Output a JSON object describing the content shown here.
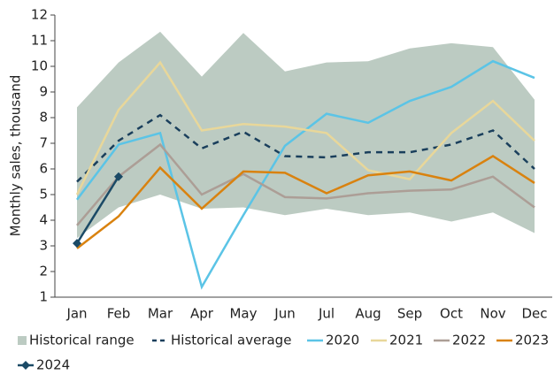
{
  "chart_data": {
    "type": "line",
    "ylabel": "Monthly sales, thousand",
    "categories": [
      "Jan",
      "Feb",
      "Mar",
      "Apr",
      "May",
      "Jun",
      "Jul",
      "Aug",
      "Sep",
      "Oct",
      "Nov",
      "Dec"
    ],
    "ylim": [
      1,
      12
    ],
    "yticks": [
      1,
      2,
      3,
      4,
      5,
      6,
      7,
      8,
      9,
      10,
      11,
      12
    ],
    "range": {
      "name": "Historical range",
      "color": "#bccbc2",
      "high": [
        8.4,
        10.15,
        11.35,
        9.6,
        11.3,
        9.8,
        10.15,
        10.2,
        10.7,
        10.9,
        10.75,
        8.7
      ],
      "low": [
        3.3,
        4.5,
        5.0,
        4.45,
        4.5,
        4.2,
        4.45,
        4.2,
        4.3,
        3.95,
        4.3,
        3.5
      ]
    },
    "series": [
      {
        "name": "Historical average",
        "color": "#1a3f5c",
        "dashed": true,
        "values": [
          5.5,
          7.1,
          8.1,
          6.8,
          7.45,
          6.5,
          6.45,
          6.65,
          6.65,
          6.95,
          7.5,
          6.0
        ]
      },
      {
        "name": "2020",
        "color": "#5bc4e6",
        "values": [
          4.8,
          6.95,
          7.4,
          1.4,
          4.2,
          6.9,
          8.15,
          7.8,
          8.65,
          9.2,
          10.2,
          9.55
        ]
      },
      {
        "name": "2021",
        "color": "#e8d79a",
        "values": [
          5.0,
          8.3,
          10.15,
          7.5,
          7.75,
          7.65,
          7.4,
          5.95,
          5.6,
          7.4,
          8.65,
          7.1
        ]
      },
      {
        "name": "2022",
        "color": "#ac9e96",
        "values": [
          3.8,
          5.7,
          6.95,
          5.0,
          5.8,
          4.9,
          4.85,
          5.05,
          5.15,
          5.2,
          5.7,
          4.5
        ]
      },
      {
        "name": "2023",
        "color": "#d9820f",
        "values": [
          2.9,
          4.15,
          6.05,
          4.45,
          5.9,
          5.85,
          5.05,
          5.75,
          5.9,
          5.55,
          6.5,
          5.45
        ]
      },
      {
        "name": "2024",
        "color": "#1b4a66",
        "marker": "diamond",
        "values": [
          3.1,
          5.7,
          null,
          null,
          null,
          null,
          null,
          null,
          null,
          null,
          null,
          null
        ]
      }
    ]
  }
}
